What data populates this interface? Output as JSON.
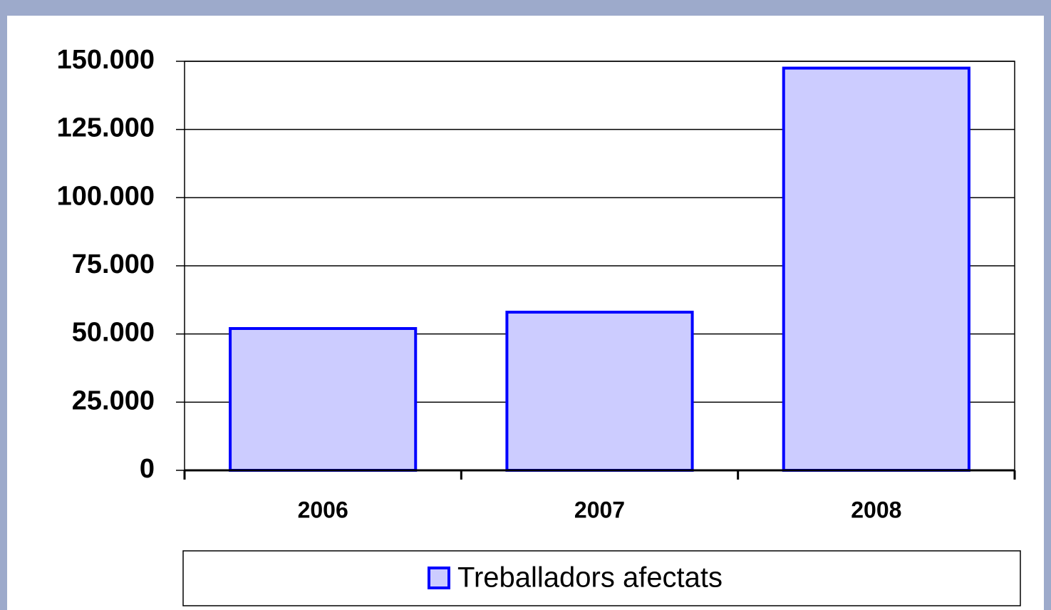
{
  "chart_data": {
    "type": "bar",
    "categories": [
      "2006",
      "2007",
      "2008"
    ],
    "series": [
      {
        "name": "Treballadors afectats",
        "color": "#CCCCFF",
        "edge_color": "#0000FF",
        "values": [
          52000,
          58000,
          147500
        ]
      }
    ],
    "ylim": [
      0,
      150000
    ],
    "yticks": [
      0,
      {
        "value": 25000,
        "label": "25.000"
      },
      {
        "value": 50000,
        "label": "50.000"
      },
      {
        "value": 75000,
        "label": "75.000"
      },
      {
        "value": 100000,
        "label": "100.000"
      },
      {
        "value": 125000,
        "label": "125.000"
      },
      {
        "value": 150000,
        "label": "150.000"
      }
    ],
    "grid": true,
    "legend": "bottom"
  }
}
